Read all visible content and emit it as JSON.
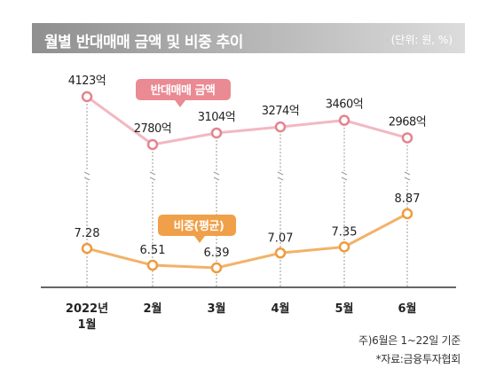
{
  "header": {
    "title": "월별 반대매매 금액 및 비중 추이",
    "unit": "(단위: 원, %)"
  },
  "notes": {
    "note1": "주)6월은 1~22일 기준",
    "source": "*자료:금융투자협회"
  },
  "colors": {
    "amount_line": "#f2b8c0",
    "amount_marker": "#e4848e",
    "amount_label_bg": "#ea8a92",
    "ratio_line": "#f2b26a",
    "ratio_marker": "#ef9b3e",
    "ratio_label_bg": "#f0a048"
  },
  "chart_data": {
    "type": "line",
    "categories": [
      "2022년\n1월",
      "2월",
      "3월",
      "4월",
      "5월",
      "6월"
    ],
    "series": [
      {
        "name": "반대매매 금액",
        "values": [
          4123,
          2780,
          3104,
          3274,
          3460,
          2968
        ],
        "labels": [
          "4123억",
          "2780억",
          "3104억",
          "3274억",
          "3460억",
          "2968억"
        ]
      },
      {
        "name": "비중(평균)",
        "values": [
          7.28,
          6.51,
          6.39,
          7.07,
          7.35,
          8.87
        ],
        "labels": [
          "7.28",
          "6.51",
          "6.39",
          "7.07",
          "7.35",
          "8.87"
        ]
      }
    ]
  }
}
